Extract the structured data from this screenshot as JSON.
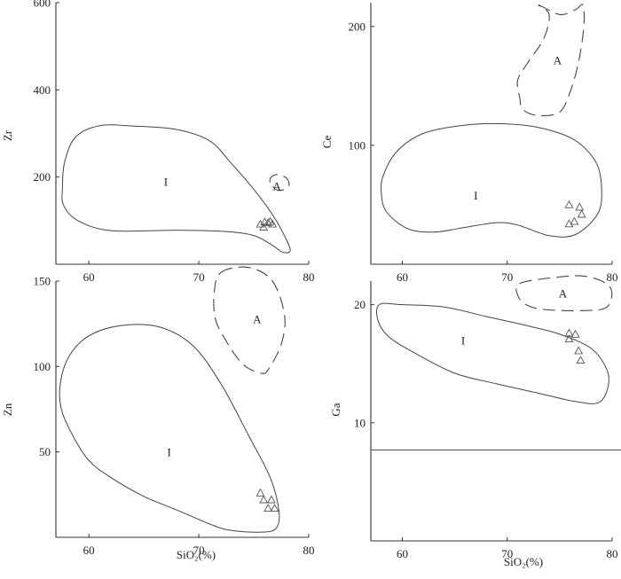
{
  "chart_data": [
    {
      "id": "zr",
      "type": "scatter",
      "ylabel": "Zr",
      "xlabel": "",
      "xlim": [
        57,
        80
      ],
      "ylim": [
        0,
        600
      ],
      "xticks": [
        60,
        70,
        80
      ],
      "yticks": [
        200,
        400,
        600
      ],
      "fields": [
        {
          "label": "I",
          "style": "solid",
          "label_at": [
            67,
            190
          ],
          "outline": [
            [
              57.6,
              175
            ],
            [
              57.8,
              235
            ],
            [
              58.8,
              292
            ],
            [
              61,
              318
            ],
            [
              64,
              317
            ],
            [
              68,
              309
            ],
            [
              71,
              283
            ],
            [
              73,
              230
            ],
            [
              75,
              172
            ],
            [
              76.8,
              110
            ],
            [
              78,
              55
            ],
            [
              78.3,
              30
            ],
            [
              77.6,
              28
            ],
            [
              76.6,
              45
            ],
            [
              75,
              66
            ],
            [
              72.5,
              75
            ],
            [
              68,
              78
            ],
            [
              62,
              77
            ],
            [
              59,
              100
            ],
            [
              57.7,
              135
            ]
          ]
        },
        {
          "label": "A",
          "style": "dashed",
          "label_at": [
            77.1,
            180
          ],
          "outline": [
            [
              76.5,
              188
            ],
            [
              76.6,
              200
            ],
            [
              77.2,
              206
            ],
            [
              78,
              197
            ],
            [
              78.2,
              180
            ],
            [
              77.6,
              170
            ],
            [
              77,
              172
            ]
          ]
        }
      ],
      "samples": [
        [
          75.6,
          92
        ],
        [
          76,
          97
        ],
        [
          76.5,
          98
        ],
        [
          75.9,
          85
        ],
        [
          76.3,
          95
        ],
        [
          76.7,
          92
        ]
      ]
    },
    {
      "id": "ce",
      "type": "scatter",
      "ylabel": "Ce",
      "xlabel": "",
      "xlim": [
        57,
        80
      ],
      "ylim": [
        0,
        220
      ],
      "xticks": [
        60,
        70,
        80
      ],
      "yticks": [
        100,
        200
      ],
      "fields": [
        {
          "label": "I",
          "style": "solid",
          "label_at": [
            67,
            58
          ],
          "outline": [
            [
              58.2,
              75
            ],
            [
              59.5,
              95
            ],
            [
              62,
              110
            ],
            [
              66,
              117
            ],
            [
              70,
              118
            ],
            [
              73.5,
              114
            ],
            [
              76.5,
              104
            ],
            [
              78.5,
              85
            ],
            [
              79,
              62
            ],
            [
              78.6,
              42
            ],
            [
              76.5,
              25
            ],
            [
              74,
              24
            ],
            [
              71,
              33
            ],
            [
              69,
              35
            ],
            [
              66,
              31
            ],
            [
              63,
              27
            ],
            [
              60.5,
              30
            ],
            [
              58.5,
              44
            ],
            [
              58,
              60
            ]
          ]
        },
        {
          "label": "A",
          "style": "dashed",
          "label_at": [
            74.8,
            172
          ],
          "outline": [
            [
              73,
              218
            ],
            [
              75,
              210
            ],
            [
              76.5,
              214
            ],
            [
              77.2,
              218
            ],
            [
              77.3,
              200
            ],
            [
              76.8,
              170
            ],
            [
              76,
              145
            ],
            [
              75,
              128
            ],
            [
              73,
              125
            ],
            [
              71.5,
              130
            ],
            [
              71.2,
              140
            ],
            [
              71,
              155
            ],
            [
              72,
              170
            ],
            [
              73.5,
              190
            ],
            [
              74,
              210
            ]
          ]
        }
      ],
      "samples": [
        [
          75.9,
          50
        ],
        [
          76.9,
          48
        ],
        [
          77.1,
          42
        ],
        [
          76.4,
          36
        ],
        [
          75.9,
          34
        ]
      ]
    },
    {
      "id": "zn",
      "type": "scatter",
      "ylabel": "Zn",
      "xlabel": "SiO₂(%)",
      "xlim": [
        57,
        80
      ],
      "ylim": [
        0,
        150
      ],
      "xticks": [
        60,
        70,
        80
      ],
      "yticks": [
        50,
        100,
        150
      ],
      "fields": [
        {
          "label": "I",
          "style": "solid",
          "label_at": [
            67.3,
            50
          ],
          "outline": [
            [
              57.4,
              90
            ],
            [
              58.2,
              106
            ],
            [
              60,
              118
            ],
            [
              63,
              124
            ],
            [
              66.5,
              123
            ],
            [
              69.5,
              112
            ],
            [
              72,
              90
            ],
            [
              74.5,
              60
            ],
            [
              76.5,
              35
            ],
            [
              77.3,
              15
            ],
            [
              77,
              5
            ],
            [
              75.5,
              3
            ],
            [
              73,
              4
            ],
            [
              71.3,
              7
            ],
            [
              68,
              16
            ],
            [
              65,
              24
            ],
            [
              62,
              35
            ],
            [
              60,
              45
            ],
            [
              58.5,
              60
            ],
            [
              57.5,
              75
            ]
          ]
        },
        {
          "label": "A",
          "style": "dashed",
          "label_at": [
            75.3,
            128
          ],
          "outline": [
            [
              72,
              155
            ],
            [
              74.5,
              158
            ],
            [
              76.7,
              150
            ],
            [
              77.8,
              130
            ],
            [
              77.5,
              113
            ],
            [
              76.3,
              98
            ],
            [
              75.7,
              96
            ],
            [
              74.5,
              99
            ],
            [
              73.5,
              105
            ],
            [
              72.3,
              117
            ],
            [
              71.5,
              128
            ],
            [
              71.4,
              143
            ]
          ]
        }
      ],
      "samples": [
        [
          75.6,
          26
        ],
        [
          75.9,
          22
        ],
        [
          76.6,
          22
        ],
        [
          76.3,
          17
        ],
        [
          76.9,
          17
        ]
      ]
    },
    {
      "id": "ga",
      "type": "scatter",
      "ylabel": "Ga",
      "xlabel": "SiO₂(%)",
      "xlim": [
        57,
        80
      ],
      "ylim": [
        0,
        22
      ],
      "xticks": [
        60,
        70,
        80
      ],
      "yticks": [
        10,
        20
      ],
      "reference_line_y": 7.7,
      "fields": [
        {
          "label": "I",
          "style": "solid",
          "label_at": [
            65.8,
            17
          ],
          "outline": [
            [
              57.8,
              20
            ],
            [
              60,
              20
            ],
            [
              64,
              19.8
            ],
            [
              68,
              19
            ],
            [
              72,
              18.2
            ],
            [
              75,
              17.5
            ],
            [
              78,
              16.3
            ],
            [
              79.5,
              14.5
            ],
            [
              79.6,
              13
            ],
            [
              78.7,
              11.7
            ],
            [
              76.5,
              11.8
            ],
            [
              73,
              12.5
            ],
            [
              69,
              13.3
            ],
            [
              65,
              14.2
            ],
            [
              61,
              16
            ],
            [
              58.7,
              17.3
            ],
            [
              57.7,
              18.6
            ]
          ]
        },
        {
          "label": "A",
          "style": "dashed",
          "label_at": [
            75.3,
            21
          ],
          "outline": [
            [
              71.2,
              21.8
            ],
            [
              74.5,
              22.3
            ],
            [
              77.5,
              22.4
            ],
            [
              79.8,
              21.5
            ],
            [
              79.5,
              19.8
            ],
            [
              77,
              19.5
            ],
            [
              73.5,
              19.6
            ],
            [
              71.8,
              20
            ],
            [
              71,
              20.8
            ]
          ]
        }
      ],
      "samples": [
        [
          75.9,
          17.6
        ],
        [
          76.5,
          17.5
        ],
        [
          75.9,
          17.1
        ],
        [
          76.8,
          16.1
        ],
        [
          77,
          15.3
        ]
      ]
    }
  ]
}
